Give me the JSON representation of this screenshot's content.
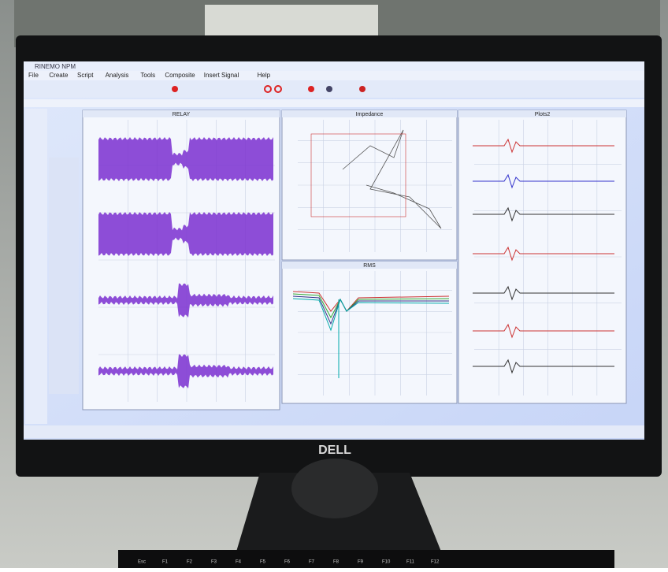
{
  "window": {
    "title": "RINEMO NPM",
    "menu": [
      "File",
      "Create",
      "Script",
      "Analysis",
      "Tools",
      "Composite",
      "Insert Signal",
      "Help"
    ],
    "panels": [
      "RELAY",
      "Impedance",
      "RMS",
      "Plots2"
    ]
  },
  "brand": "DELL",
  "keyboard": [
    "Esc",
    "F1",
    "F2",
    "F3",
    "F4",
    "F5",
    "F6",
    "F7",
    "F8",
    "F9",
    "F10",
    "F11",
    "F12"
  ]
}
